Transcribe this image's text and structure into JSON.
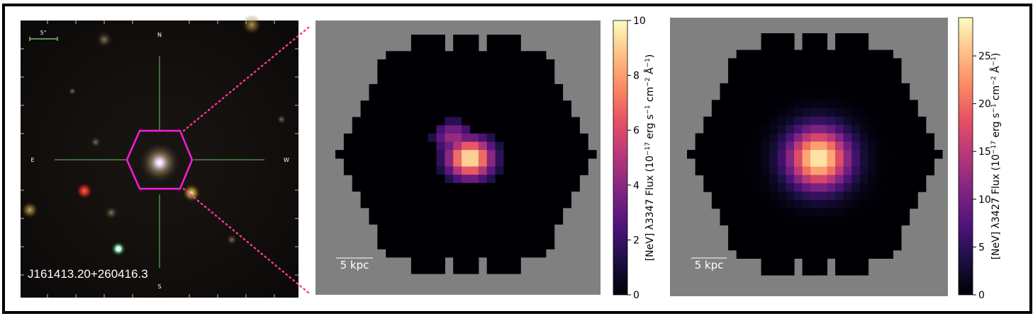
{
  "figure": {
    "object_name": "J161413.20+260416.3",
    "scale_bar_arcsec": "5\"",
    "compass": {
      "north": "N",
      "south": "S",
      "east": "E",
      "west": "W"
    }
  },
  "panel_nev3347": {
    "scale_label": "5 kpc",
    "colorbar_label_prefix": "[NeV] λ3347 Flux (10",
    "colorbar_label_exp1": "−17",
    "colorbar_label_mid1": " erg s",
    "colorbar_label_exp2": "−1",
    "colorbar_label_mid2": " cm",
    "colorbar_label_exp3": "−2",
    "colorbar_label_mid3": " Å",
    "colorbar_label_exp4": "−1",
    "colorbar_label_suffix": ")",
    "colorbar_ticks": [
      "0",
      "2",
      "4",
      "6",
      "8",
      "10"
    ]
  },
  "panel_nev3427": {
    "scale_label": "5 kpc",
    "colorbar_label_prefix": "[NeV] λ3427 Flux (10",
    "colorbar_label_exp1": "−17",
    "colorbar_label_mid1": " erg s",
    "colorbar_label_exp2": "−1",
    "colorbar_label_mid2": " cm",
    "colorbar_label_exp3": "−2",
    "colorbar_label_mid3": " Å",
    "colorbar_label_exp4": "−1",
    "colorbar_label_suffix": ")",
    "colorbar_ticks": [
      "0",
      "5",
      "10",
      "15",
      "20",
      "25"
    ]
  },
  "colors": {
    "background_gray": "#808080",
    "hexagon_magenta": "#ff1adc",
    "dotted_connector": "#ff3399",
    "crosshair": "#6fc46f"
  }
}
